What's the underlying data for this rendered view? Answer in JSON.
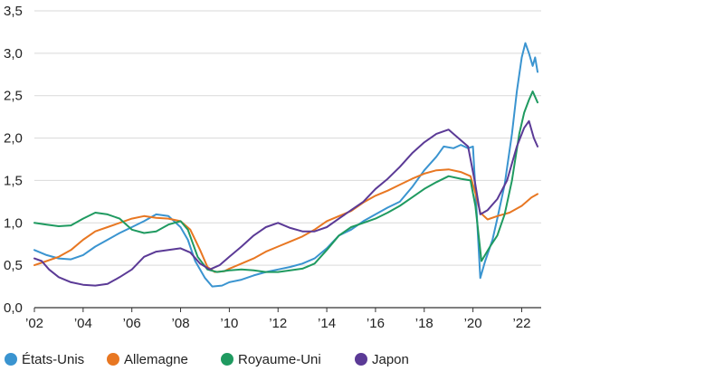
{
  "chart_data": {
    "type": "line",
    "title": "",
    "xlabel": "",
    "ylabel": "",
    "xlim": [
      2002,
      2022.8
    ],
    "ylim": [
      0,
      3.5
    ],
    "grid": "horizontal",
    "legend_position": "bottom",
    "x_ticks": [
      {
        "value": 2002,
        "label": "’02"
      },
      {
        "value": 2004,
        "label": "’04"
      },
      {
        "value": 2006,
        "label": "’06"
      },
      {
        "value": 2008,
        "label": "’08"
      },
      {
        "value": 2010,
        "label": "’10"
      },
      {
        "value": 2012,
        "label": "’12"
      },
      {
        "value": 2014,
        "label": "’14"
      },
      {
        "value": 2016,
        "label": "’16"
      },
      {
        "value": 2018,
        "label": "’18"
      },
      {
        "value": 2020,
        "label": "’20"
      },
      {
        "value": 2022,
        "label": "’22"
      }
    ],
    "y_ticks": [
      {
        "value": 0.0,
        "label": "0,0"
      },
      {
        "value": 0.5,
        "label": "0,5"
      },
      {
        "value": 1.0,
        "label": "1,0"
      },
      {
        "value": 1.5,
        "label": "1,5"
      },
      {
        "value": 2.0,
        "label": "2,0"
      },
      {
        "value": 2.5,
        "label": "2,5"
      },
      {
        "value": 3.0,
        "label": "3,0"
      },
      {
        "value": 3.5,
        "label": "3,5"
      }
    ],
    "series": [
      {
        "name": "États-Unis",
        "color": "#3a94d0",
        "points": [
          [
            2002.0,
            0.68
          ],
          [
            2002.5,
            0.62
          ],
          [
            2003.0,
            0.58
          ],
          [
            2003.5,
            0.57
          ],
          [
            2004.0,
            0.62
          ],
          [
            2004.5,
            0.72
          ],
          [
            2005.0,
            0.8
          ],
          [
            2005.5,
            0.88
          ],
          [
            2006.0,
            0.95
          ],
          [
            2006.5,
            1.02
          ],
          [
            2007.0,
            1.1
          ],
          [
            2007.5,
            1.08
          ],
          [
            2008.0,
            0.95
          ],
          [
            2008.3,
            0.8
          ],
          [
            2008.6,
            0.55
          ],
          [
            2009.0,
            0.35
          ],
          [
            2009.3,
            0.25
          ],
          [
            2009.7,
            0.26
          ],
          [
            2010.0,
            0.3
          ],
          [
            2010.5,
            0.33
          ],
          [
            2011.0,
            0.38
          ],
          [
            2011.5,
            0.42
          ],
          [
            2012.0,
            0.45
          ],
          [
            2012.5,
            0.48
          ],
          [
            2013.0,
            0.52
          ],
          [
            2013.5,
            0.58
          ],
          [
            2014.0,
            0.7
          ],
          [
            2014.5,
            0.85
          ],
          [
            2015.0,
            0.92
          ],
          [
            2015.5,
            1.02
          ],
          [
            2016.0,
            1.1
          ],
          [
            2016.5,
            1.18
          ],
          [
            2017.0,
            1.25
          ],
          [
            2017.5,
            1.42
          ],
          [
            2018.0,
            1.62
          ],
          [
            2018.5,
            1.78
          ],
          [
            2018.8,
            1.9
          ],
          [
            2019.2,
            1.88
          ],
          [
            2019.5,
            1.92
          ],
          [
            2019.8,
            1.88
          ],
          [
            2020.0,
            1.9
          ],
          [
            2020.1,
            1.4
          ],
          [
            2020.3,
            0.35
          ],
          [
            2020.5,
            0.55
          ],
          [
            2020.8,
            0.8
          ],
          [
            2021.0,
            1.05
          ],
          [
            2021.3,
            1.45
          ],
          [
            2021.6,
            2.05
          ],
          [
            2021.8,
            2.55
          ],
          [
            2022.0,
            2.95
          ],
          [
            2022.15,
            3.12
          ],
          [
            2022.3,
            3.0
          ],
          [
            2022.45,
            2.85
          ],
          [
            2022.55,
            2.95
          ],
          [
            2022.65,
            2.78
          ]
        ]
      },
      {
        "name": "Allemagne",
        "color": "#e87722",
        "points": [
          [
            2002.0,
            0.5
          ],
          [
            2002.5,
            0.55
          ],
          [
            2003.0,
            0.6
          ],
          [
            2003.5,
            0.68
          ],
          [
            2004.0,
            0.8
          ],
          [
            2004.5,
            0.9
          ],
          [
            2005.0,
            0.95
          ],
          [
            2005.5,
            1.0
          ],
          [
            2006.0,
            1.05
          ],
          [
            2006.5,
            1.08
          ],
          [
            2007.0,
            1.06
          ],
          [
            2007.5,
            1.05
          ],
          [
            2008.0,
            1.02
          ],
          [
            2008.4,
            0.92
          ],
          [
            2008.8,
            0.68
          ],
          [
            2009.1,
            0.48
          ],
          [
            2009.4,
            0.42
          ],
          [
            2009.8,
            0.43
          ],
          [
            2010.0,
            0.46
          ],
          [
            2010.5,
            0.52
          ],
          [
            2011.0,
            0.58
          ],
          [
            2011.5,
            0.66
          ],
          [
            2012.0,
            0.72
          ],
          [
            2012.5,
            0.78
          ],
          [
            2013.0,
            0.84
          ],
          [
            2013.5,
            0.92
          ],
          [
            2014.0,
            1.02
          ],
          [
            2014.5,
            1.08
          ],
          [
            2015.0,
            1.14
          ],
          [
            2015.5,
            1.24
          ],
          [
            2016.0,
            1.32
          ],
          [
            2016.5,
            1.38
          ],
          [
            2017.0,
            1.45
          ],
          [
            2017.5,
            1.52
          ],
          [
            2018.0,
            1.58
          ],
          [
            2018.5,
            1.62
          ],
          [
            2019.0,
            1.63
          ],
          [
            2019.5,
            1.6
          ],
          [
            2019.9,
            1.55
          ],
          [
            2020.1,
            1.35
          ],
          [
            2020.3,
            1.12
          ],
          [
            2020.6,
            1.04
          ],
          [
            2021.0,
            1.08
          ],
          [
            2021.5,
            1.12
          ],
          [
            2022.0,
            1.2
          ],
          [
            2022.4,
            1.3
          ],
          [
            2022.65,
            1.34
          ]
        ]
      },
      {
        "name": "Royaume-Uni",
        "color": "#1f9a60",
        "points": [
          [
            2002.0,
            1.0
          ],
          [
            2002.5,
            0.98
          ],
          [
            2003.0,
            0.96
          ],
          [
            2003.5,
            0.97
          ],
          [
            2004.0,
            1.05
          ],
          [
            2004.5,
            1.12
          ],
          [
            2005.0,
            1.1
          ],
          [
            2005.5,
            1.05
          ],
          [
            2006.0,
            0.92
          ],
          [
            2006.5,
            0.88
          ],
          [
            2007.0,
            0.9
          ],
          [
            2007.5,
            0.98
          ],
          [
            2008.0,
            1.02
          ],
          [
            2008.3,
            0.92
          ],
          [
            2008.7,
            0.6
          ],
          [
            2009.1,
            0.45
          ],
          [
            2009.5,
            0.42
          ],
          [
            2010.0,
            0.44
          ],
          [
            2010.5,
            0.45
          ],
          [
            2011.0,
            0.44
          ],
          [
            2011.5,
            0.42
          ],
          [
            2012.0,
            0.42
          ],
          [
            2012.5,
            0.44
          ],
          [
            2013.0,
            0.46
          ],
          [
            2013.5,
            0.52
          ],
          [
            2014.0,
            0.68
          ],
          [
            2014.5,
            0.85
          ],
          [
            2015.0,
            0.95
          ],
          [
            2015.5,
            1.0
          ],
          [
            2016.0,
            1.05
          ],
          [
            2016.5,
            1.12
          ],
          [
            2017.0,
            1.2
          ],
          [
            2017.5,
            1.3
          ],
          [
            2018.0,
            1.4
          ],
          [
            2018.5,
            1.48
          ],
          [
            2019.0,
            1.55
          ],
          [
            2019.5,
            1.52
          ],
          [
            2019.9,
            1.5
          ],
          [
            2020.1,
            1.2
          ],
          [
            2020.35,
            0.55
          ],
          [
            2020.7,
            0.72
          ],
          [
            2021.0,
            0.85
          ],
          [
            2021.3,
            1.1
          ],
          [
            2021.6,
            1.5
          ],
          [
            2021.9,
            2.05
          ],
          [
            2022.1,
            2.3
          ],
          [
            2022.3,
            2.45
          ],
          [
            2022.45,
            2.55
          ],
          [
            2022.65,
            2.42
          ]
        ]
      },
      {
        "name": "Japon",
        "color": "#5b3a96",
        "points": [
          [
            2002.0,
            0.58
          ],
          [
            2002.3,
            0.55
          ],
          [
            2002.6,
            0.45
          ],
          [
            2003.0,
            0.36
          ],
          [
            2003.5,
            0.3
          ],
          [
            2004.0,
            0.27
          ],
          [
            2004.5,
            0.26
          ],
          [
            2005.0,
            0.28
          ],
          [
            2005.5,
            0.36
          ],
          [
            2006.0,
            0.45
          ],
          [
            2006.5,
            0.6
          ],
          [
            2007.0,
            0.66
          ],
          [
            2007.5,
            0.68
          ],
          [
            2008.0,
            0.7
          ],
          [
            2008.4,
            0.65
          ],
          [
            2008.8,
            0.52
          ],
          [
            2009.2,
            0.45
          ],
          [
            2009.6,
            0.5
          ],
          [
            2010.0,
            0.6
          ],
          [
            2010.5,
            0.72
          ],
          [
            2011.0,
            0.85
          ],
          [
            2011.5,
            0.95
          ],
          [
            2012.0,
            1.0
          ],
          [
            2012.5,
            0.94
          ],
          [
            2013.0,
            0.9
          ],
          [
            2013.5,
            0.9
          ],
          [
            2014.0,
            0.95
          ],
          [
            2014.5,
            1.05
          ],
          [
            2015.0,
            1.15
          ],
          [
            2015.5,
            1.25
          ],
          [
            2016.0,
            1.4
          ],
          [
            2016.5,
            1.52
          ],
          [
            2017.0,
            1.66
          ],
          [
            2017.5,
            1.82
          ],
          [
            2018.0,
            1.95
          ],
          [
            2018.5,
            2.05
          ],
          [
            2019.0,
            2.1
          ],
          [
            2019.4,
            2.0
          ],
          [
            2019.8,
            1.9
          ],
          [
            2020.1,
            1.45
          ],
          [
            2020.3,
            1.1
          ],
          [
            2020.6,
            1.15
          ],
          [
            2021.0,
            1.28
          ],
          [
            2021.4,
            1.5
          ],
          [
            2021.8,
            1.9
          ],
          [
            2022.1,
            2.12
          ],
          [
            2022.3,
            2.2
          ],
          [
            2022.5,
            2.0
          ],
          [
            2022.65,
            1.9
          ]
        ]
      }
    ]
  }
}
